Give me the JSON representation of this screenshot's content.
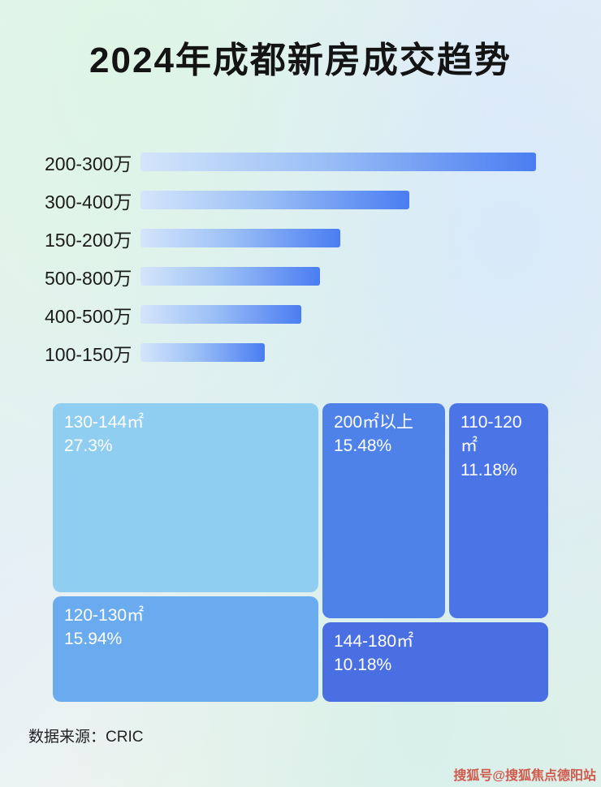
{
  "header": {
    "title": "2024年成都新房成交趋势"
  },
  "bar_chart": {
    "rows": [
      {
        "label": "200-300万",
        "value": 100
      },
      {
        "label": "300-400万",
        "value": 68
      },
      {
        "label": "150-200万",
        "value": 50.5
      },
      {
        "label": "500-800万",
        "value": 45.4
      },
      {
        "label": "400-500万",
        "value": 40.6
      },
      {
        "label": "100-150万",
        "value": 31.5
      }
    ]
  },
  "treemap": {
    "blocks": [
      {
        "label": "130-144㎡",
        "pct": "27.3%"
      },
      {
        "label": "200㎡以上",
        "pct": "15.48%"
      },
      {
        "label": "110-120㎡",
        "pct": "11.18%"
      },
      {
        "label": "120-130㎡",
        "pct": "15.94%"
      },
      {
        "label": "144-180㎡",
        "pct": "10.18%"
      }
    ]
  },
  "footer": {
    "source": "数据来源：CRIC"
  },
  "watermark": "搜狐号@搜狐焦点德阳站",
  "colors": {
    "bar_gradient_start": "#d4e5fb",
    "bar_gradient_end": "#4a7df2",
    "block_130_144": "#8fcdf1",
    "block_200_plus": "#4f82e9",
    "block_110_120": "#4b74e6",
    "block_120_130": "#6aabf0",
    "block_144_180": "#4a6fe2",
    "watermark_red": "#cf4a3c"
  },
  "chart_data": [
    {
      "type": "bar",
      "orientation": "horizontal",
      "title": "2024年成都新房成交趋势",
      "categories": [
        "200-300万",
        "300-400万",
        "150-200万",
        "500-800万",
        "400-500万",
        "100-150万"
      ],
      "values": [
        100,
        68,
        50.5,
        45.4,
        40.6,
        31.5
      ],
      "xlabel": "",
      "ylabel": "",
      "legend": false,
      "grid": false
    },
    {
      "type": "treemap",
      "title": "",
      "items": [
        {
          "label": "130-144㎡",
          "value": 27.3
        },
        {
          "label": "200㎡以上",
          "value": 15.48
        },
        {
          "label": "110-120㎡",
          "value": 11.18
        },
        {
          "label": "120-130㎡",
          "value": 15.94
        },
        {
          "label": "144-180㎡",
          "value": 10.18
        }
      ]
    }
  ]
}
